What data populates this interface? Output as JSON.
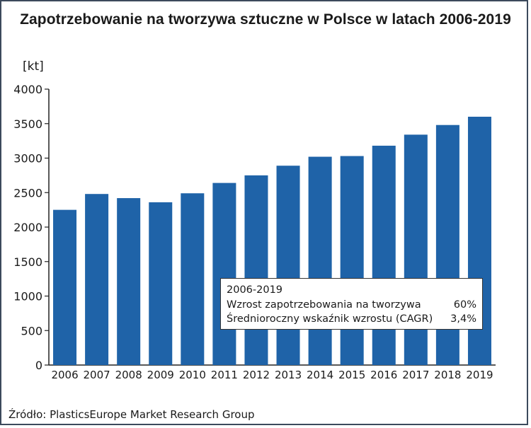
{
  "chart_data": {
    "type": "bar",
    "title": "Zapotrzebowanie na tworzywa sztuczne w Polsce w latach 2006-2019",
    "ylabel": "[kt]",
    "xlabel": "",
    "ylim": [
      0,
      4000
    ],
    "yticks": [
      0,
      500,
      1000,
      1500,
      2000,
      2500,
      3000,
      3500,
      4000
    ],
    "grid": false,
    "categories": [
      "2006",
      "2007",
      "2008",
      "2009",
      "2010",
      "2011",
      "2012",
      "2013",
      "2014",
      "2015",
      "2016",
      "2017",
      "2018",
      "2019"
    ],
    "values": [
      2250,
      2480,
      2420,
      2360,
      2490,
      2640,
      2750,
      2890,
      3020,
      3030,
      3180,
      3340,
      3480,
      3600
    ],
    "bar_color": "#1f63a8",
    "annotation": {
      "header": "2006-2019",
      "rows": [
        {
          "label": "Wzrost zapotrzebowania na tworzywa",
          "value": "60%"
        },
        {
          "label": "Średnioroczny wskaźnik wzrostu (CAGR)",
          "value": "3,4%"
        }
      ]
    },
    "source": "Źródło: PlasticsEurope Market Research Group"
  }
}
